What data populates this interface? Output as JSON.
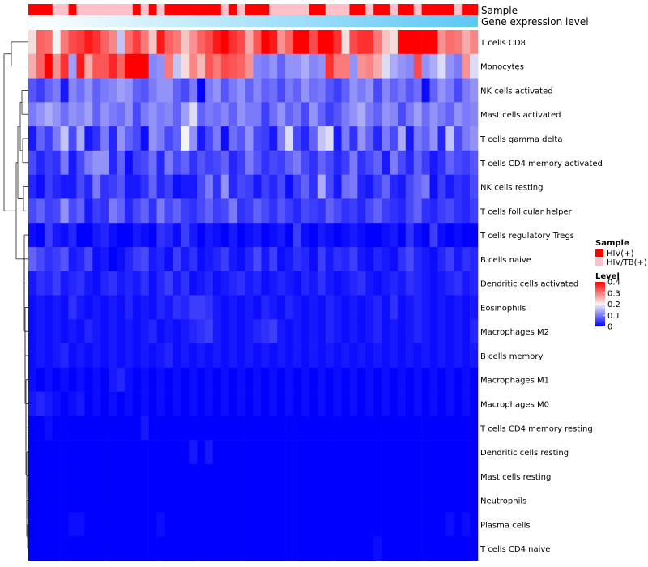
{
  "chart_data": {
    "type": "heatmap",
    "title": "",
    "annotation_tracks": {
      "sample_label": "Sample",
      "expression_label": "Gene expression level",
      "sample_groups": [
        "HIV(+)",
        "HIV(+)",
        "HIV(+)",
        "HIV/TB(+)",
        "HIV/TB(+)",
        "HIV(+)",
        "HIV/TB(+)",
        "HIV/TB(+)",
        "HIV/TB(+)",
        "HIV/TB(+)",
        "HIV/TB(+)",
        "HIV/TB(+)",
        "HIV/TB(+)",
        "HIV(+)",
        "HIV/TB(+)",
        "HIV(+)",
        "HIV/TB(+)",
        "HIV(+)",
        "HIV(+)",
        "HIV(+)",
        "HIV(+)",
        "HIV(+)",
        "HIV(+)",
        "HIV(+)",
        "HIV/TB(+)",
        "HIV(+)",
        "HIV/TB(+)",
        "HIV(+)",
        "HIV(+)",
        "HIV(+)",
        "HIV/TB(+)",
        "HIV/TB(+)",
        "HIV/TB(+)",
        "HIV/TB(+)",
        "HIV/TB(+)",
        "HIV(+)",
        "HIV(+)",
        "HIV/TB(+)",
        "HIV/TB(+)",
        "HIV/TB(+)",
        "HIV(+)",
        "HIV(+)",
        "HIV/TB(+)",
        "HIV(+)",
        "HIV(+)",
        "HIV/TB(+)",
        "HIV(+)",
        "HIV(+)",
        "HIV/TB(+)",
        "HIV(+)",
        "HIV(+)",
        "HIV(+)",
        "HIV(+)",
        "HIV/TB(+)",
        "HIV(+)",
        "HIV(+)"
      ]
    },
    "rows": [
      "T cells CD8",
      "Monocytes",
      "NK cells activated",
      "Mast cells activated",
      "T cells gamma delta",
      "T cells CD4 memory activated",
      "NK cells resting",
      "T cells follicular helper",
      "T cells regulatory  Tregs",
      "B cells naive",
      "Dendritic cells activated",
      "Eosinophils",
      "Macrophages M2",
      "B cells memory",
      "Macrophages M1",
      "Macrophages M0",
      "T cells CD4 memory resting",
      "Dendritic cells resting",
      "Mast cells resting",
      "Neutrophils",
      "Plasma cells",
      "T cells CD4 naive"
    ],
    "values": [
      [
        0.22,
        0.32,
        0.31,
        0.2,
        0.3,
        0.34,
        0.35,
        0.38,
        0.36,
        0.32,
        0.29,
        0.16,
        0.31,
        0.35,
        0.3,
        0.24,
        0.38,
        0.32,
        0.3,
        0.24,
        0.28,
        0.32,
        0.34,
        0.38,
        0.42,
        0.36,
        0.34,
        0.26,
        0.33,
        0.4,
        0.38,
        0.28,
        0.32,
        0.43,
        0.43,
        0.34,
        0.42,
        0.4,
        0.36,
        0.22,
        0.34,
        0.36,
        0.36,
        0.3,
        0.24,
        0.22,
        0.44,
        0.42,
        0.44,
        0.44,
        0.4,
        0.28,
        0.31,
        0.3,
        0.26,
        0.29
      ],
      [
        0.26,
        0.32,
        0.42,
        0.28,
        0.36,
        0.13,
        0.38,
        0.26,
        0.33,
        0.33,
        0.37,
        0.32,
        0.44,
        0.44,
        0.44,
        0.11,
        0.12,
        0.3,
        0.16,
        0.22,
        0.29,
        0.25,
        0.33,
        0.3,
        0.34,
        0.33,
        0.32,
        0.28,
        0.11,
        0.1,
        0.12,
        0.08,
        0.12,
        0.12,
        0.14,
        0.11,
        0.12,
        0.36,
        0.3,
        0.3,
        0.12,
        0.28,
        0.29,
        0.26,
        0.18,
        0.14,
        0.12,
        0.11,
        0.34,
        0.12,
        0.14,
        0.18,
        0.12,
        0.1,
        0.28,
        0.18
      ],
      [
        0.07,
        0.05,
        0.08,
        0.1,
        0.02,
        0.11,
        0.09,
        0.12,
        0.08,
        0.1,
        0.11,
        0.13,
        0.12,
        0.08,
        0.07,
        0.1,
        0.12,
        0.12,
        0.08,
        0.06,
        0.1,
        0.0,
        0.1,
        0.12,
        0.07,
        0.1,
        0.12,
        0.08,
        0.11,
        0.08,
        0.09,
        0.06,
        0.1,
        0.08,
        0.12,
        0.09,
        0.1,
        0.07,
        0.05,
        0.08,
        0.12,
        0.1,
        0.12,
        0.06,
        0.11,
        0.08,
        0.1,
        0.07,
        0.09,
        0.01,
        0.08,
        0.12,
        0.1,
        0.06,
        0.1,
        0.12
      ],
      [
        0.1,
        0.12,
        0.14,
        0.12,
        0.09,
        0.12,
        0.11,
        0.13,
        0.08,
        0.12,
        0.1,
        0.09,
        0.12,
        0.06,
        0.1,
        0.12,
        0.1,
        0.11,
        0.08,
        0.13,
        0.18,
        0.08,
        0.1,
        0.09,
        0.11,
        0.08,
        0.12,
        0.1,
        0.1,
        0.05,
        0.09,
        0.12,
        0.08,
        0.1,
        0.06,
        0.12,
        0.08,
        0.05,
        0.07,
        0.1,
        0.12,
        0.14,
        0.1,
        0.08,
        0.12,
        0.11,
        0.06,
        0.1,
        0.13,
        0.09,
        0.12,
        0.1,
        0.08,
        0.12,
        0.1,
        0.11
      ],
      [
        0.02,
        0.08,
        0.05,
        0.1,
        0.16,
        0.06,
        0.14,
        0.02,
        0.04,
        0.1,
        0.03,
        0.12,
        0.08,
        0.06,
        0.01,
        0.12,
        0.1,
        0.06,
        0.08,
        0.2,
        0.12,
        0.02,
        0.06,
        0.1,
        0.01,
        0.09,
        0.07,
        0.12,
        0.06,
        0.05,
        0.02,
        0.1,
        0.18,
        0.06,
        0.03,
        0.08,
        0.16,
        0.18,
        0.02,
        0.1,
        0.04,
        0.12,
        0.08,
        0.03,
        0.1,
        0.06,
        0.14,
        0.02,
        0.1,
        0.08,
        0.12,
        0.03,
        0.16,
        0.06,
        0.1,
        0.12
      ],
      [
        0.06,
        0.03,
        0.05,
        0.04,
        0.1,
        0.02,
        0.06,
        0.1,
        0.12,
        0.12,
        0.03,
        0.08,
        0.01,
        0.05,
        0.06,
        0.09,
        0.03,
        0.1,
        0.06,
        0.08,
        0.04,
        0.07,
        0.05,
        0.06,
        0.08,
        0.03,
        0.05,
        0.1,
        0.07,
        0.04,
        0.06,
        0.05,
        0.08,
        0.1,
        0.06,
        0.04,
        0.08,
        0.06,
        0.03,
        0.05,
        0.1,
        0.04,
        0.06,
        0.08,
        0.02,
        0.1,
        0.06,
        0.03,
        0.08,
        0.05,
        0.02,
        0.04,
        0.08,
        0.06,
        0.05,
        0.07
      ],
      [
        0.03,
        0.01,
        0.05,
        0.03,
        0.02,
        0.02,
        0.06,
        0.03,
        0.1,
        0.04,
        0.05,
        0.07,
        0.02,
        0.02,
        0.04,
        0.08,
        0.03,
        0.05,
        0.01,
        0.02,
        0.02,
        0.06,
        0.1,
        0.04,
        0.12,
        0.03,
        0.06,
        0.05,
        0.02,
        0.05,
        0.03,
        0.06,
        0.01,
        0.05,
        0.08,
        0.04,
        0.14,
        0.06,
        0.02,
        0.09,
        0.1,
        0.03,
        0.02,
        0.05,
        0.08,
        0.03,
        0.02,
        0.06,
        0.08,
        0.1,
        0.01,
        0.05,
        0.02,
        0.04,
        0.03,
        0.06
      ],
      [
        0.06,
        0.08,
        0.05,
        0.06,
        0.12,
        0.06,
        0.08,
        0.02,
        0.05,
        0.04,
        0.1,
        0.08,
        0.03,
        0.06,
        0.08,
        0.04,
        0.1,
        0.06,
        0.08,
        0.05,
        0.04,
        0.06,
        0.08,
        0.05,
        0.06,
        0.1,
        0.04,
        0.05,
        0.08,
        0.06,
        0.04,
        0.07,
        0.05,
        0.03,
        0.06,
        0.05,
        0.04,
        0.08,
        0.06,
        0.04,
        0.05,
        0.03,
        0.06,
        0.08,
        0.05,
        0.04,
        0.03,
        0.06,
        0.08,
        0.04,
        0.03,
        0.05,
        0.06,
        0.04,
        0.03,
        0.05
      ],
      [
        0.01,
        0.0,
        0.05,
        0.02,
        0.01,
        0.03,
        0.0,
        0.0,
        0.02,
        0.03,
        0.01,
        0.0,
        0.0,
        0.02,
        0.01,
        0.0,
        0.04,
        0.03,
        0.01,
        0.05,
        0.02,
        0.0,
        0.02,
        0.01,
        0.0,
        0.02,
        0.0,
        0.01,
        0.02,
        0.0,
        0.01,
        0.02,
        0.0,
        0.05,
        0.01,
        0.0,
        0.02,
        0.01,
        0.0,
        0.01,
        0.02,
        0.01,
        0.0,
        0.0,
        0.01,
        0.02,
        0.0,
        0.04,
        0.01,
        0.0,
        0.05,
        0.01,
        0.0,
        0.01,
        0.0,
        0.0
      ],
      [
        0.08,
        0.06,
        0.04,
        0.05,
        0.07,
        0.02,
        0.03,
        0.06,
        0.01,
        0.02,
        0.0,
        0.01,
        0.03,
        0.05,
        0.06,
        0.02,
        0.03,
        0.01,
        0.05,
        0.02,
        0.04,
        0.01,
        0.02,
        0.03,
        0.05,
        0.02,
        0.01,
        0.03,
        0.06,
        0.02,
        0.05,
        0.01,
        0.02,
        0.04,
        0.03,
        0.01,
        0.05,
        0.02,
        0.04,
        0.03,
        0.05,
        0.02,
        0.01,
        0.03,
        0.02,
        0.01,
        0.04,
        0.06,
        0.03,
        0.02,
        0.01,
        0.03,
        0.05,
        0.02,
        0.04,
        0.03
      ],
      [
        0.02,
        0.04,
        0.03,
        0.05,
        0.02,
        0.03,
        0.04,
        0.02,
        0.01,
        0.03,
        0.04,
        0.02,
        0.03,
        0.02,
        0.04,
        0.01,
        0.03,
        0.05,
        0.02,
        0.04,
        0.01,
        0.02,
        0.03,
        0.01,
        0.02,
        0.03,
        0.04,
        0.02,
        0.03,
        0.01,
        0.02,
        0.03,
        0.02,
        0.01,
        0.03,
        0.02,
        0.04,
        0.02,
        0.01,
        0.02,
        0.03,
        0.04,
        0.02,
        0.01,
        0.02,
        0.03,
        0.02,
        0.04,
        0.03,
        0.02,
        0.01,
        0.02,
        0.03,
        0.04,
        0.02,
        0.03
      ],
      [
        0.01,
        0.02,
        0.01,
        0.02,
        0.01,
        0.04,
        0.02,
        0.01,
        0.02,
        0.01,
        0.02,
        0.01,
        0.03,
        0.01,
        0.02,
        0.01,
        0.03,
        0.02,
        0.04,
        0.03,
        0.05,
        0.05,
        0.04,
        0.02,
        0.01,
        0.02,
        0.01,
        0.02,
        0.01,
        0.03,
        0.02,
        0.01,
        0.03,
        0.02,
        0.01,
        0.02,
        0.01,
        0.03,
        0.02,
        0.01,
        0.02,
        0.01,
        0.02,
        0.03,
        0.01,
        0.04,
        0.01,
        0.02,
        0.03,
        0.02,
        0.01,
        0.02,
        0.01,
        0.02,
        0.01,
        0.02
      ],
      [
        0.01,
        0.02,
        0.01,
        0.02,
        0.01,
        0.02,
        0.01,
        0.03,
        0.02,
        0.01,
        0.02,
        0.01,
        0.02,
        0.01,
        0.02,
        0.03,
        0.01,
        0.02,
        0.01,
        0.02,
        0.03,
        0.04,
        0.05,
        0.02,
        0.01,
        0.02,
        0.01,
        0.02,
        0.03,
        0.04,
        0.05,
        0.02,
        0.01,
        0.02,
        0.01,
        0.02,
        0.01,
        0.03,
        0.02,
        0.01,
        0.02,
        0.01,
        0.02,
        0.03,
        0.01,
        0.02,
        0.01,
        0.02,
        0.03,
        0.02,
        0.01,
        0.02,
        0.01,
        0.02,
        0.01,
        0.03
      ],
      [
        0.01,
        0.02,
        0.01,
        0.02,
        0.03,
        0.01,
        0.02,
        0.01,
        0.02,
        0.01,
        0.02,
        0.01,
        0.02,
        0.01,
        0.02,
        0.01,
        0.02,
        0.03,
        0.01,
        0.02,
        0.01,
        0.02,
        0.01,
        0.02,
        0.01,
        0.02,
        0.01,
        0.02,
        0.01,
        0.02,
        0.01,
        0.02,
        0.01,
        0.02,
        0.01,
        0.02,
        0.01,
        0.02,
        0.01,
        0.02,
        0.01,
        0.02,
        0.01,
        0.02,
        0.01,
        0.02,
        0.01,
        0.02,
        0.01,
        0.02,
        0.01,
        0.02,
        0.01,
        0.02,
        0.01,
        0.02
      ],
      [
        0.01,
        0.0,
        0.01,
        0.0,
        0.01,
        0.0,
        0.01,
        0.0,
        0.01,
        0.0,
        0.02,
        0.03,
        0.01,
        0.0,
        0.01,
        0.0,
        0.01,
        0.0,
        0.01,
        0.0,
        0.01,
        0.0,
        0.01,
        0.0,
        0.01,
        0.0,
        0.01,
        0.0,
        0.01,
        0.0,
        0.01,
        0.0,
        0.01,
        0.0,
        0.01,
        0.0,
        0.01,
        0.0,
        0.01,
        0.0,
        0.01,
        0.0,
        0.01,
        0.0,
        0.01,
        0.0,
        0.01,
        0.0,
        0.01,
        0.0,
        0.01,
        0.0,
        0.01,
        0.0,
        0.01,
        0.0
      ],
      [
        0.02,
        0.03,
        0.02,
        0.01,
        0.0,
        0.01,
        0.02,
        0.0,
        0.01,
        0.0,
        0.01,
        0.0,
        0.01,
        0.0,
        0.01,
        0.0,
        0.01,
        0.0,
        0.01,
        0.0,
        0.01,
        0.0,
        0.01,
        0.0,
        0.01,
        0.0,
        0.01,
        0.0,
        0.01,
        0.0,
        0.01,
        0.0,
        0.01,
        0.0,
        0.01,
        0.0,
        0.01,
        0.0,
        0.01,
        0.0,
        0.01,
        0.0,
        0.01,
        0.0,
        0.01,
        0.0,
        0.01,
        0.0,
        0.01,
        0.0,
        0.01,
        0.0,
        0.01,
        0.0,
        0.01,
        0.0
      ],
      [
        0.0,
        0.0,
        0.01,
        0.0,
        0.0,
        0.0,
        0.0,
        0.0,
        0.0,
        0.0,
        0.0,
        0.0,
        0.0,
        0.0,
        0.02,
        0.0,
        0.0,
        0.0,
        0.0,
        0.0,
        0.0,
        0.0,
        0.0,
        0.0,
        0.0,
        0.0,
        0.0,
        0.0,
        0.0,
        0.0,
        0.0,
        0.0,
        0.0,
        0.0,
        0.0,
        0.0,
        0.0,
        0.0,
        0.0,
        0.0,
        0.0,
        0.0,
        0.0,
        0.0,
        0.0,
        0.0,
        0.0,
        0.0,
        0.0,
        0.0,
        0.0,
        0.0,
        0.0,
        0.0,
        0.0,
        0.0
      ],
      [
        0.0,
        0.0,
        0.0,
        0.0,
        0.0,
        0.0,
        0.0,
        0.0,
        0.0,
        0.0,
        0.0,
        0.0,
        0.0,
        0.0,
        0.0,
        0.0,
        0.0,
        0.0,
        0.0,
        0.0,
        0.02,
        0.0,
        0.02,
        0.0,
        0.0,
        0.0,
        0.0,
        0.0,
        0.0,
        0.0,
        0.0,
        0.0,
        0.0,
        0.0,
        0.0,
        0.0,
        0.0,
        0.0,
        0.0,
        0.0,
        0.0,
        0.0,
        0.0,
        0.0,
        0.0,
        0.0,
        0.0,
        0.0,
        0.0,
        0.0,
        0.0,
        0.0,
        0.0,
        0.0,
        0.0,
        0.0
      ],
      [
        0.0,
        0.0,
        0.0,
        0.0,
        0.0,
        0.0,
        0.0,
        0.0,
        0.0,
        0.0,
        0.0,
        0.0,
        0.0,
        0.0,
        0.0,
        0.0,
        0.0,
        0.0,
        0.0,
        0.0,
        0.0,
        0.0,
        0.0,
        0.0,
        0.0,
        0.0,
        0.0,
        0.0,
        0.0,
        0.0,
        0.0,
        0.0,
        0.0,
        0.0,
        0.0,
        0.0,
        0.0,
        0.0,
        0.0,
        0.0,
        0.0,
        0.0,
        0.0,
        0.0,
        0.0,
        0.0,
        0.0,
        0.0,
        0.0,
        0.0,
        0.0,
        0.0,
        0.0,
        0.0,
        0.0,
        0.0
      ],
      [
        0.0,
        0.0,
        0.0,
        0.0,
        0.0,
        0.0,
        0.0,
        0.0,
        0.0,
        0.0,
        0.0,
        0.0,
        0.0,
        0.0,
        0.0,
        0.0,
        0.0,
        0.0,
        0.0,
        0.0,
        0.0,
        0.0,
        0.0,
        0.0,
        0.0,
        0.0,
        0.0,
        0.0,
        0.0,
        0.0,
        0.0,
        0.0,
        0.0,
        0.0,
        0.0,
        0.0,
        0.0,
        0.0,
        0.0,
        0.0,
        0.0,
        0.0,
        0.0,
        0.0,
        0.0,
        0.0,
        0.0,
        0.0,
        0.0,
        0.0,
        0.0,
        0.0,
        0.0,
        0.0,
        0.0,
        0.0
      ],
      [
        0.0,
        0.0,
        0.0,
        0.0,
        0.0,
        0.01,
        0.01,
        0.0,
        0.0,
        0.0,
        0.0,
        0.0,
        0.0,
        0.0,
        0.0,
        0.0,
        0.01,
        0.0,
        0.0,
        0.0,
        0.0,
        0.0,
        0.0,
        0.0,
        0.0,
        0.0,
        0.0,
        0.0,
        0.0,
        0.0,
        0.0,
        0.0,
        0.0,
        0.0,
        0.0,
        0.0,
        0.0,
        0.0,
        0.0,
        0.0,
        0.0,
        0.0,
        0.0,
        0.0,
        0.0,
        0.0,
        0.0,
        0.0,
        0.0,
        0.0,
        0.0,
        0.0,
        0.01,
        0.0,
        0.01,
        0.0
      ],
      [
        0.0,
        0.0,
        0.0,
        0.0,
        0.0,
        0.0,
        0.0,
        0.0,
        0.0,
        0.0,
        0.0,
        0.0,
        0.0,
        0.0,
        0.0,
        0.0,
        0.0,
        0.0,
        0.0,
        0.0,
        0.0,
        0.0,
        0.0,
        0.0,
        0.0,
        0.0,
        0.0,
        0.0,
        0.0,
        0.0,
        0.0,
        0.0,
        0.0,
        0.0,
        0.0,
        0.0,
        0.0,
        0.0,
        0.0,
        0.0,
        0.0,
        0.0,
        0.0,
        0.01,
        0.0,
        0.0,
        0.0,
        0.0,
        0.0,
        0.0,
        0.0,
        0.0,
        0.0,
        0.0,
        0.0,
        0.0
      ]
    ],
    "color_scale": {
      "min": 0,
      "max": 0.4,
      "low": "#0000ff",
      "mid": "#f4f4f4",
      "high": "#ff0000",
      "mid_value": 0.2
    },
    "legend": {
      "sample_title": "Sample",
      "sample_entries": [
        {
          "label": "HIV(+)",
          "color": "#ff0000"
        },
        {
          "label": "HIV/TB(+)",
          "color": "#ffc0cb"
        }
      ],
      "level_title": "Level",
      "level_ticks": [
        "0.4",
        "0.3",
        "0.2",
        "0.1",
        "0"
      ],
      "level_tick_values": [
        0.4,
        0.3,
        0.2,
        0.1,
        0
      ],
      "placement": "right"
    },
    "dendrogram": "rows"
  }
}
